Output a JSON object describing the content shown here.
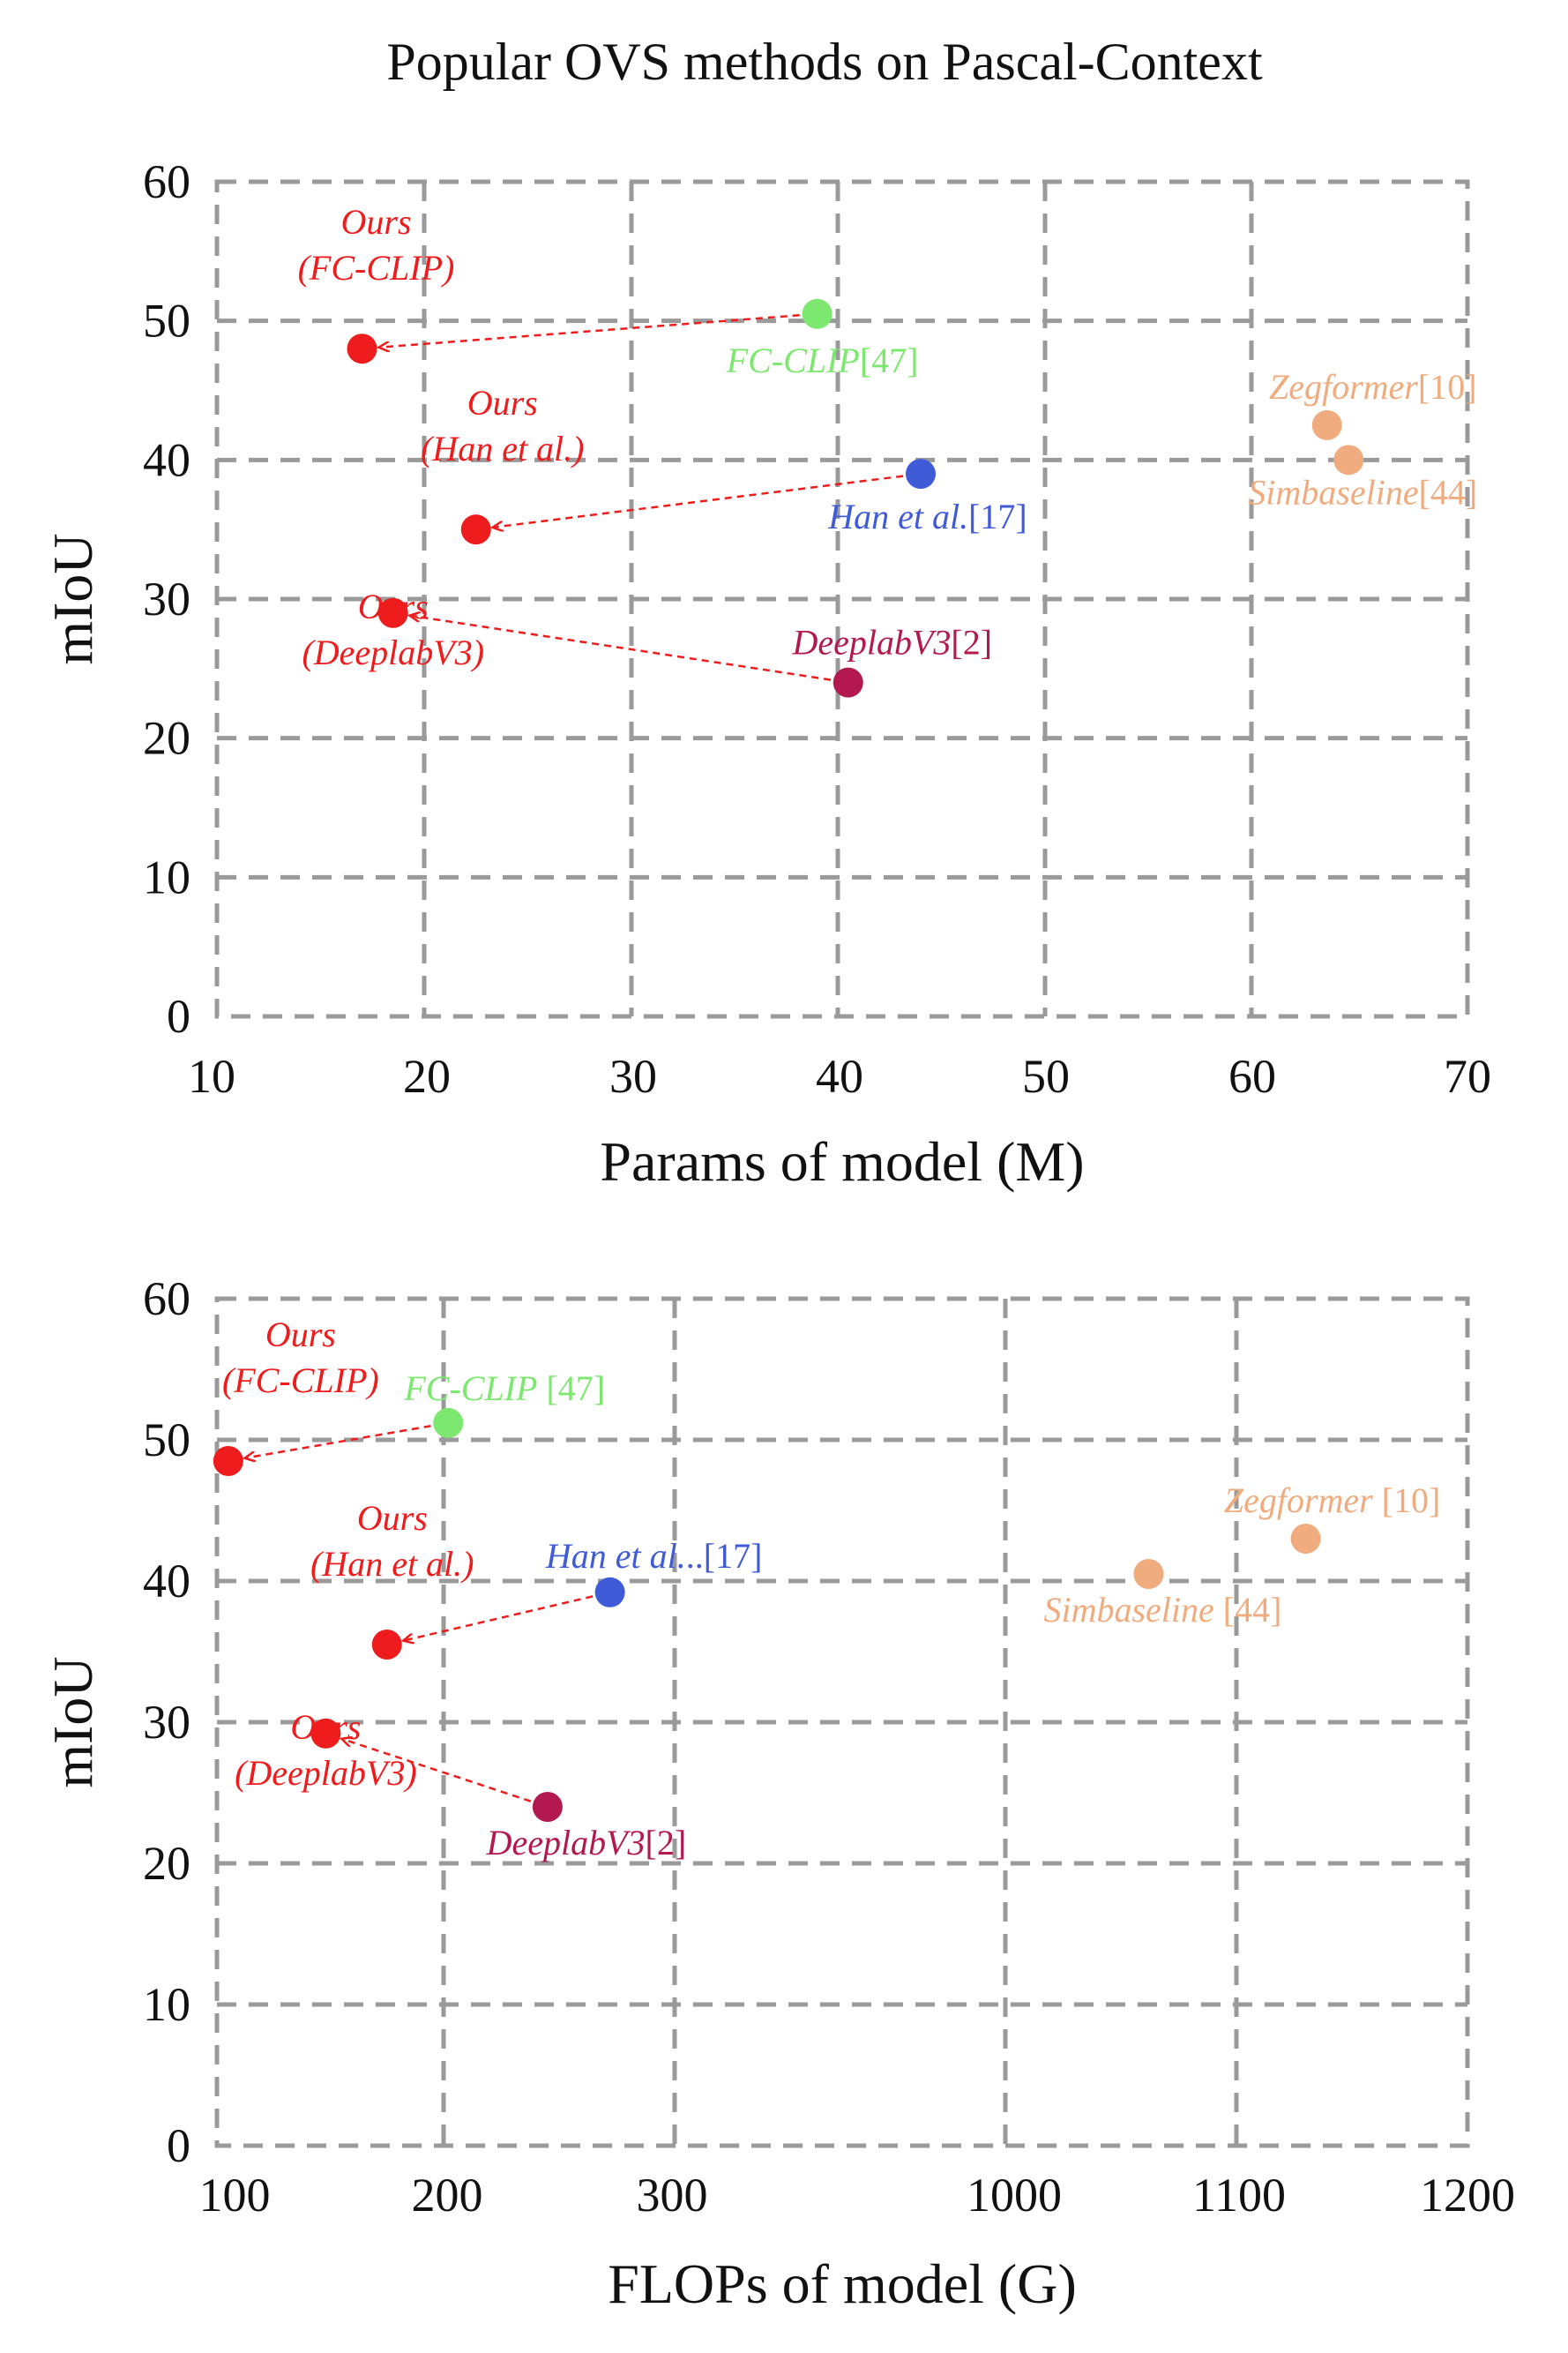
{
  "title": "Popular OVS methods on Pascal-Context",
  "chart_data": [
    {
      "type": "scatter",
      "xlabel": "Params of model (M)",
      "ylabel": "mIoU",
      "xlim": [
        10,
        70
      ],
      "ylim": [
        0,
        60
      ],
      "x_ticks": [
        "10",
        "20",
        "30",
        "40",
        "50",
        "60",
        "70"
      ],
      "y_ticks": [
        "0",
        "10",
        "20",
        "30",
        "40",
        "50",
        "60"
      ],
      "grid": true,
      "points": [
        {
          "x": 17.0,
          "y": 48,
          "color": "#ee1c1c",
          "label": [
            "Ours",
            "(FC-CLIP)"
          ],
          "ref": ""
        },
        {
          "x": 22.5,
          "y": 35,
          "color": "#ee1c1c",
          "label": [
            "Ours",
            "(Han et al.)"
          ],
          "ref": ""
        },
        {
          "x": 18.5,
          "y": 29,
          "color": "#ee1c1c",
          "label": [
            "Ours",
            "(DeeplabV3)"
          ],
          "ref": ""
        },
        {
          "x": 39.0,
          "y": 50.5,
          "color": "#7de86f",
          "label": [
            "FC-CLIP"
          ],
          "ref": "[47]"
        },
        {
          "x": 44.0,
          "y": 39,
          "color": "#3f5bd8",
          "label": [
            "Han et al."
          ],
          "ref": "[17]"
        },
        {
          "x": 40.5,
          "y": 24,
          "color": "#b3194f",
          "label": [
            "DeeplabV3"
          ],
          "ref": "[2]"
        },
        {
          "x": 63.5,
          "y": 42.5,
          "color": "#f0ab7e",
          "label": [
            "Zegformer"
          ],
          "ref": "[10]"
        },
        {
          "x": 64.5,
          "y": 40,
          "color": "#f0ab7e",
          "label": [
            "Simbaseline"
          ],
          "ref": "[44]"
        }
      ],
      "arrows": [
        {
          "from": "FC-CLIP",
          "to": "Ours (FC-CLIP)"
        },
        {
          "from": "Han et al.",
          "to": "Ours (Han et al.)"
        },
        {
          "from": "DeeplabV3",
          "to": "Ours (DeeplabV3)"
        }
      ]
    },
    {
      "type": "scatter",
      "xlabel": "FLOPs of model (G)",
      "ylabel": "mIoU",
      "x_axis": "broken: 100–300 then 1000–1200",
      "x_ticks": [
        "100",
        "200",
        "300",
        "1000",
        "1100",
        "1200"
      ],
      "y_ticks": [
        "0",
        "10",
        "20",
        "30",
        "40",
        "50",
        "60"
      ],
      "ylim": [
        0,
        60
      ],
      "grid": true,
      "points": [
        {
          "x": 105,
          "y": 48.5,
          "color": "#ee1c1c",
          "label": [
            "Ours",
            "(FC-CLIP)"
          ],
          "ref": ""
        },
        {
          "x": 175,
          "y": 35.5,
          "color": "#ee1c1c",
          "label": [
            "Ours",
            "(Han et al.)"
          ],
          "ref": ""
        },
        {
          "x": 148,
          "y": 29.2,
          "color": "#ee1c1c",
          "label": [
            "Ours",
            "(DeeplabV3)"
          ],
          "ref": ""
        },
        {
          "x": 202,
          "y": 51.2,
          "color": "#7de86f",
          "label": [
            "FC-CLIP"
          ],
          "ref": " [47]"
        },
        {
          "x": 272,
          "y": 39.2,
          "color": "#3f5bd8",
          "label": [
            "Han et al."
          ],
          "ref": "..[17]"
        },
        {
          "x": 245,
          "y": 24,
          "color": "#b3194f",
          "label": [
            "DeeplabV3"
          ],
          "ref": "[2]"
        },
        {
          "x": 1130,
          "y": 43,
          "color": "#f0ab7e",
          "label": [
            "Zegformer"
          ],
          "ref": " [10]"
        },
        {
          "x": 1062,
          "y": 40.5,
          "color": "#f0ab7e",
          "label": [
            "Simbaseline"
          ],
          "ref": " [44]"
        }
      ],
      "arrows": [
        {
          "from": "FC-CLIP",
          "to": "Ours (FC-CLIP)"
        },
        {
          "from": "Han et al.",
          "to": "Ours (Han et al.)"
        },
        {
          "from": "DeeplabV3",
          "to": "Ours (DeeplabV3)"
        }
      ]
    }
  ]
}
